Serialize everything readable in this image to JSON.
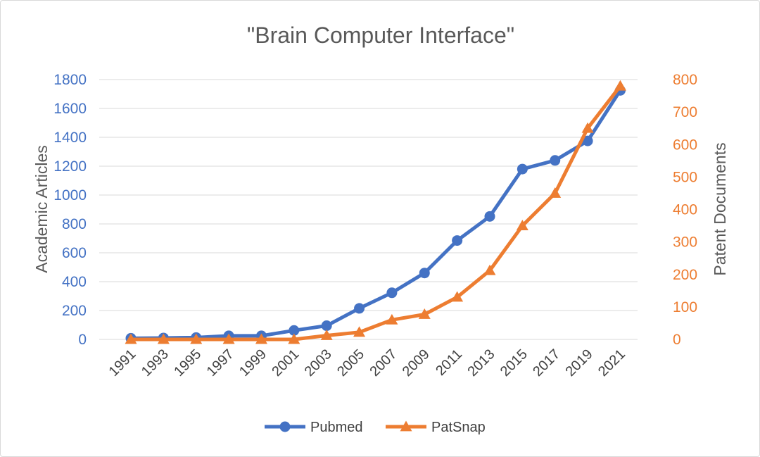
{
  "chart_data": {
    "type": "line",
    "title": "\"Brain Computer Interface\"",
    "xlabel": "",
    "ylabel": "Academic Articles",
    "y2label": "Patent Documents",
    "categories": [
      "1991",
      "1993",
      "1995",
      "1997",
      "1999",
      "2001",
      "2003",
      "2005",
      "2007",
      "2009",
      "2011",
      "2013",
      "2015",
      "2017",
      "2019",
      "2021"
    ],
    "ylim": [
      0,
      1800
    ],
    "yticks": [
      0,
      200,
      400,
      600,
      800,
      1000,
      1200,
      1400,
      1600,
      1800
    ],
    "y2lim": [
      0,
      800
    ],
    "y2ticks": [
      0,
      100,
      200,
      300,
      400,
      500,
      600,
      700,
      800
    ],
    "grid": true,
    "legend_position": "bottom",
    "series": [
      {
        "name": "Pubmed",
        "axis": "left",
        "color": "#4472c4",
        "marker": "circle",
        "values": [
          8,
          10,
          13,
          25,
          25,
          62,
          95,
          215,
          323,
          460,
          685,
          852,
          1180,
          1240,
          1375,
          1725
        ]
      },
      {
        "name": "PatSnap",
        "axis": "right",
        "color": "#ed7d31",
        "marker": "triangle",
        "values": [
          0,
          0,
          0,
          0,
          0,
          0,
          12,
          22,
          60,
          77,
          130,
          212,
          350,
          450,
          650,
          780
        ]
      }
    ]
  }
}
